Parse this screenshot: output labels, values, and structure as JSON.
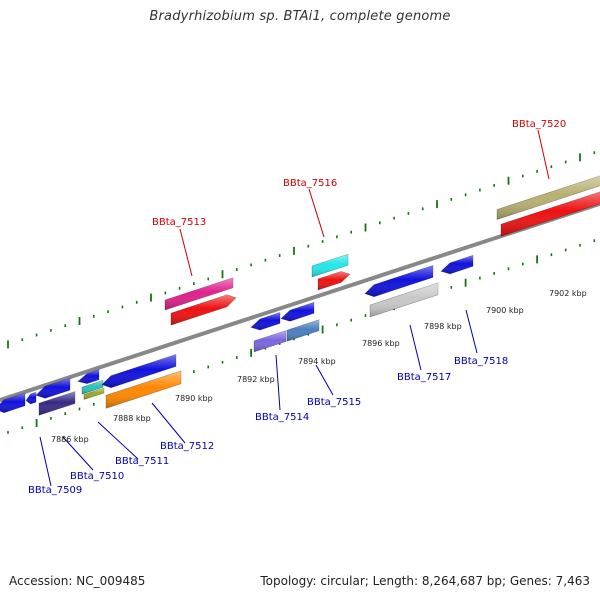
{
  "title": "Bradyrhizobium sp. BTAi1, complete genome",
  "footer": {
    "accession": "Accession: NC_009485",
    "summary": "Topology: circular; Length: 8,264,687 bp; Genes: 7,463"
  },
  "colors": {
    "forward_label": "#cc0000",
    "reverse_label": "#0000aa",
    "backbone": "#888888",
    "tick": "#117711"
  },
  "scale_labels": [
    "7886 kbp",
    "7888 kbp",
    "7890 kbp",
    "7892 kbp",
    "7894 kbp",
    "7896 kbp",
    "7898 kbp",
    "7900 kbp",
    "7902 kbp"
  ],
  "gene_labels": {
    "forward": [
      "BBta_7513",
      "BBta_7516",
      "BBta_7520"
    ],
    "reverse": [
      "BBta_7509",
      "BBta_7510",
      "BBta_7511",
      "BBta_7512",
      "BBta_7514",
      "BBta_7515",
      "BBta_7517",
      "BBta_7518"
    ]
  }
}
